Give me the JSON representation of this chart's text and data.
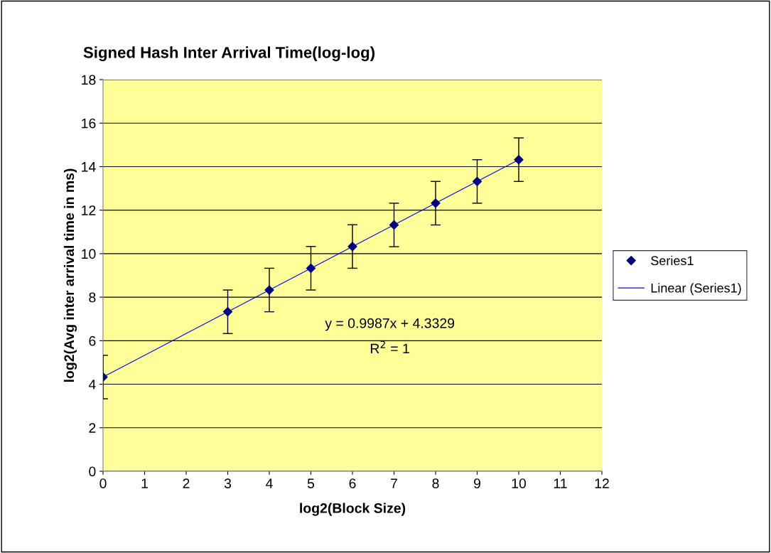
{
  "chart_data": {
    "type": "scatter",
    "title": "Signed Hash Inter Arrival Time(log-log)",
    "xlabel": "log2(Block Size)",
    "ylabel": "log2(Avg inter arrival time in ms)",
    "series": [
      {
        "name": "Series1",
        "color": "#000080",
        "marker": "diamond",
        "x": [
          0,
          3,
          4,
          5,
          6,
          7,
          8,
          9,
          10
        ],
        "values": [
          4.33,
          7.33,
          8.33,
          9.33,
          10.33,
          11.32,
          12.32,
          13.32,
          14.32
        ],
        "errors": [
          1,
          1,
          1,
          1,
          1,
          1,
          1,
          1,
          1
        ]
      },
      {
        "name": "Linear (Series1)",
        "type": "line",
        "color": "#0000ff",
        "marker": "none",
        "line_style": "solid",
        "x": [
          0,
          10
        ],
        "values": [
          4.33,
          14.32
        ]
      }
    ],
    "annotations": [
      "y = 0.9987x + 4.3329",
      "R$^{2}$ = 1"
    ],
    "xlim": [
      0,
      12
    ],
    "xticks": [
      0,
      1,
      2,
      3,
      4,
      5,
      6,
      7,
      8,
      9,
      10,
      11,
      12
    ],
    "ylim": [
      0,
      18
    ],
    "yticks": [
      0,
      2,
      4,
      6,
      8,
      10,
      12,
      14,
      16,
      18
    ],
    "grid": "y",
    "legend": "right"
  }
}
